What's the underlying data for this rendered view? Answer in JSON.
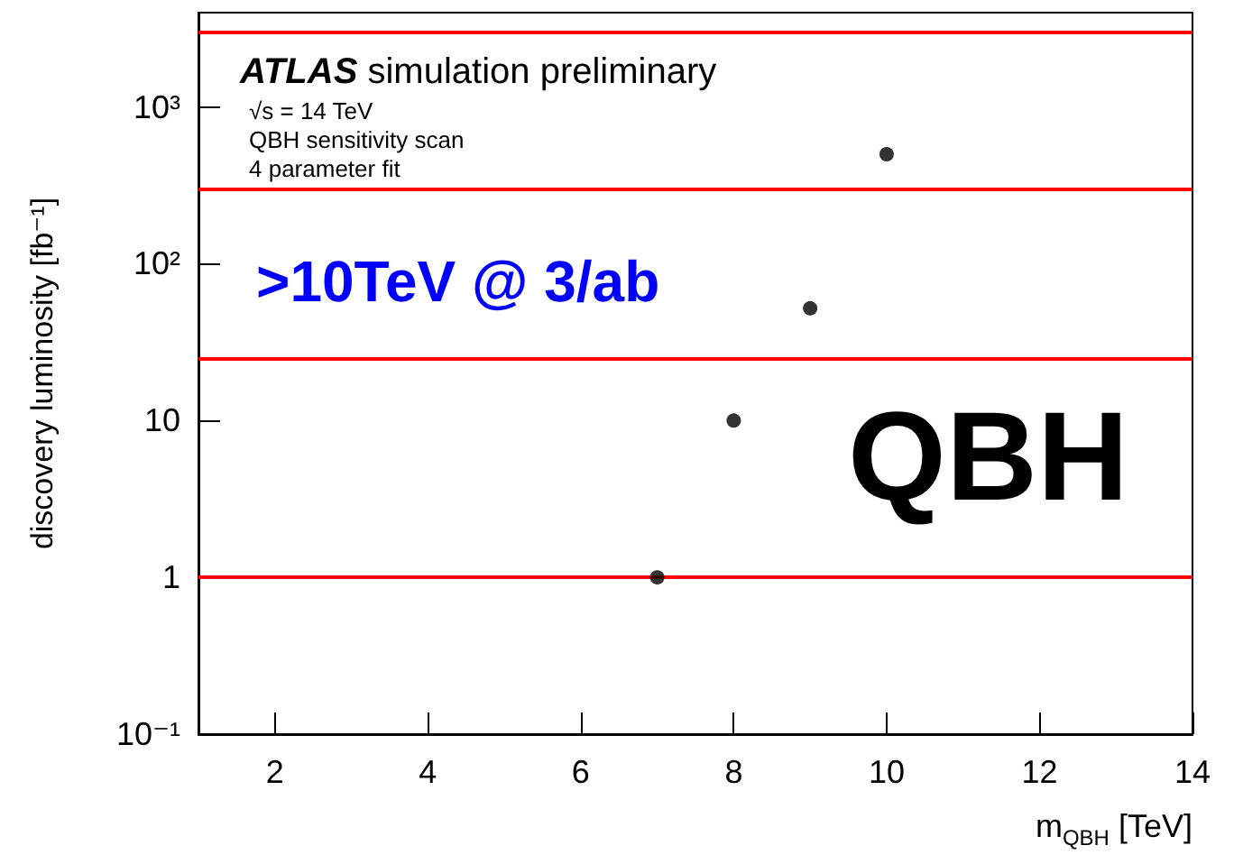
{
  "chart_data": {
    "type": "scatter",
    "xlabel": "m$_{QBH}$ [TeV]",
    "ylabel": "discovery luminosity [fb⁻¹]",
    "annotations": [
      "ATLAS simulation preliminary",
      "√s = 14 TeV",
      "QBH sensitivity scan",
      "4 parameter fit",
      ">10TeV @ 3/ab",
      "QBH"
    ],
    "x": [
      7,
      8,
      9,
      10
    ],
    "series": [
      {
        "color": "#000000",
        "values": [
          1,
          10,
          52,
          500
        ]
      }
    ],
    "xlim": [
      1,
      14
    ],
    "xticks": [
      2,
      4,
      6,
      8,
      10,
      12,
      14
    ],
    "ylim": [
      0.1,
      4000
    ],
    "yticks": [
      {
        "value": 0.1,
        "label": "10⁻¹"
      },
      {
        "value": 1,
        "label": "1"
      },
      {
        "value": 10,
        "label": "10"
      },
      {
        "value": 100,
        "label": "10²"
      },
      {
        "value": 1000,
        "label": "10³"
      }
    ],
    "log": "y",
    "grid": false,
    "marker": "circle",
    "ref_lines": [
      {
        "axis": "y",
        "value": 1,
        "color": "#ff0000"
      },
      {
        "axis": "y",
        "value": 25,
        "color": "#ff0000"
      },
      {
        "axis": "y",
        "value": 300,
        "color": "#ff0000"
      },
      {
        "axis": "y",
        "value": 3000,
        "color": "#ff0000"
      }
    ]
  }
}
